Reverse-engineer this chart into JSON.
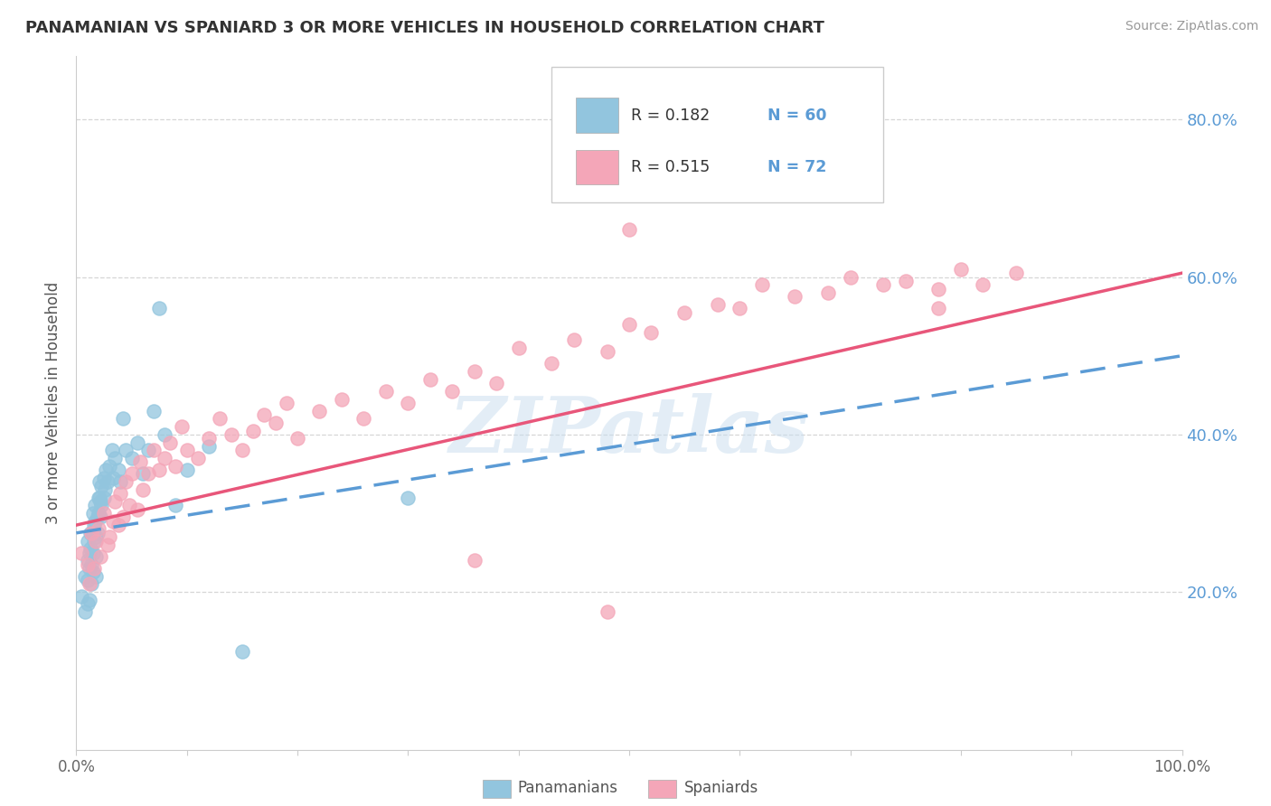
{
  "title": "PANAMANIAN VS SPANIARD 3 OR MORE VEHICLES IN HOUSEHOLD CORRELATION CHART",
  "source_text": "Source: ZipAtlas.com",
  "ylabel": "3 or more Vehicles in Household",
  "ytick_labels": [
    "20.0%",
    "40.0%",
    "60.0%",
    "80.0%"
  ],
  "ytick_values": [
    0.2,
    0.4,
    0.6,
    0.8
  ],
  "xlim": [
    0.0,
    1.0
  ],
  "ylim": [
    0.0,
    0.88
  ],
  "watermark": "ZIPatlas",
  "legend_r1": "R = 0.182",
  "legend_n1": "N = 60",
  "legend_r2": "R = 0.515",
  "legend_n2": "N = 72",
  "color_blue": "#92c5de",
  "color_pink": "#f4a6b8",
  "color_blue_line": "#5b9bd5",
  "color_pink_line": "#e8567a",
  "legend_label1": "Panamanians",
  "legend_label2": "Spaniards",
  "trend_blue_x0": 0.0,
  "trend_blue_y0": 0.275,
  "trend_blue_x1": 1.0,
  "trend_blue_y1": 0.5,
  "trend_pink_x0": 0.0,
  "trend_pink_y0": 0.285,
  "trend_pink_x1": 1.0,
  "trend_pink_y1": 0.605,
  "panama_x": [
    0.005,
    0.008,
    0.008,
    0.01,
    0.01,
    0.01,
    0.01,
    0.012,
    0.012,
    0.012,
    0.013,
    0.013,
    0.014,
    0.014,
    0.015,
    0.015,
    0.015,
    0.015,
    0.016,
    0.016,
    0.017,
    0.017,
    0.018,
    0.018,
    0.018,
    0.019,
    0.019,
    0.02,
    0.02,
    0.021,
    0.021,
    0.022,
    0.022,
    0.023,
    0.023,
    0.025,
    0.025,
    0.026,
    0.027,
    0.028,
    0.03,
    0.032,
    0.033,
    0.035,
    0.038,
    0.04,
    0.042,
    0.045,
    0.05,
    0.055,
    0.06,
    0.065,
    0.07,
    0.075,
    0.08,
    0.09,
    0.1,
    0.12,
    0.15,
    0.3
  ],
  "panama_y": [
    0.195,
    0.22,
    0.175,
    0.265,
    0.24,
    0.215,
    0.185,
    0.25,
    0.23,
    0.19,
    0.275,
    0.255,
    0.235,
    0.21,
    0.3,
    0.275,
    0.25,
    0.225,
    0.285,
    0.265,
    0.31,
    0.29,
    0.27,
    0.245,
    0.22,
    0.295,
    0.275,
    0.32,
    0.3,
    0.34,
    0.32,
    0.295,
    0.315,
    0.335,
    0.31,
    0.32,
    0.345,
    0.33,
    0.355,
    0.34,
    0.36,
    0.38,
    0.345,
    0.37,
    0.355,
    0.34,
    0.42,
    0.38,
    0.37,
    0.39,
    0.35,
    0.38,
    0.43,
    0.56,
    0.4,
    0.31,
    0.355,
    0.385,
    0.125,
    0.32
  ],
  "spain_x": [
    0.005,
    0.01,
    0.012,
    0.014,
    0.016,
    0.018,
    0.02,
    0.022,
    0.025,
    0.028,
    0.03,
    0.033,
    0.035,
    0.038,
    0.04,
    0.042,
    0.045,
    0.048,
    0.05,
    0.055,
    0.058,
    0.06,
    0.065,
    0.07,
    0.075,
    0.08,
    0.085,
    0.09,
    0.095,
    0.1,
    0.11,
    0.12,
    0.13,
    0.14,
    0.15,
    0.16,
    0.17,
    0.18,
    0.19,
    0.2,
    0.22,
    0.24,
    0.26,
    0.28,
    0.3,
    0.32,
    0.34,
    0.36,
    0.38,
    0.4,
    0.43,
    0.45,
    0.48,
    0.5,
    0.52,
    0.55,
    0.58,
    0.6,
    0.62,
    0.65,
    0.68,
    0.7,
    0.73,
    0.75,
    0.78,
    0.8,
    0.82,
    0.85,
    0.48,
    0.36,
    0.5,
    0.78
  ],
  "spain_y": [
    0.25,
    0.235,
    0.21,
    0.275,
    0.23,
    0.265,
    0.28,
    0.245,
    0.3,
    0.26,
    0.27,
    0.29,
    0.315,
    0.285,
    0.325,
    0.295,
    0.34,
    0.31,
    0.35,
    0.305,
    0.365,
    0.33,
    0.35,
    0.38,
    0.355,
    0.37,
    0.39,
    0.36,
    0.41,
    0.38,
    0.37,
    0.395,
    0.42,
    0.4,
    0.38,
    0.405,
    0.425,
    0.415,
    0.44,
    0.395,
    0.43,
    0.445,
    0.42,
    0.455,
    0.44,
    0.47,
    0.455,
    0.48,
    0.465,
    0.51,
    0.49,
    0.52,
    0.505,
    0.54,
    0.53,
    0.555,
    0.565,
    0.56,
    0.59,
    0.575,
    0.58,
    0.6,
    0.59,
    0.595,
    0.585,
    0.61,
    0.59,
    0.605,
    0.175,
    0.24,
    0.66,
    0.56
  ]
}
